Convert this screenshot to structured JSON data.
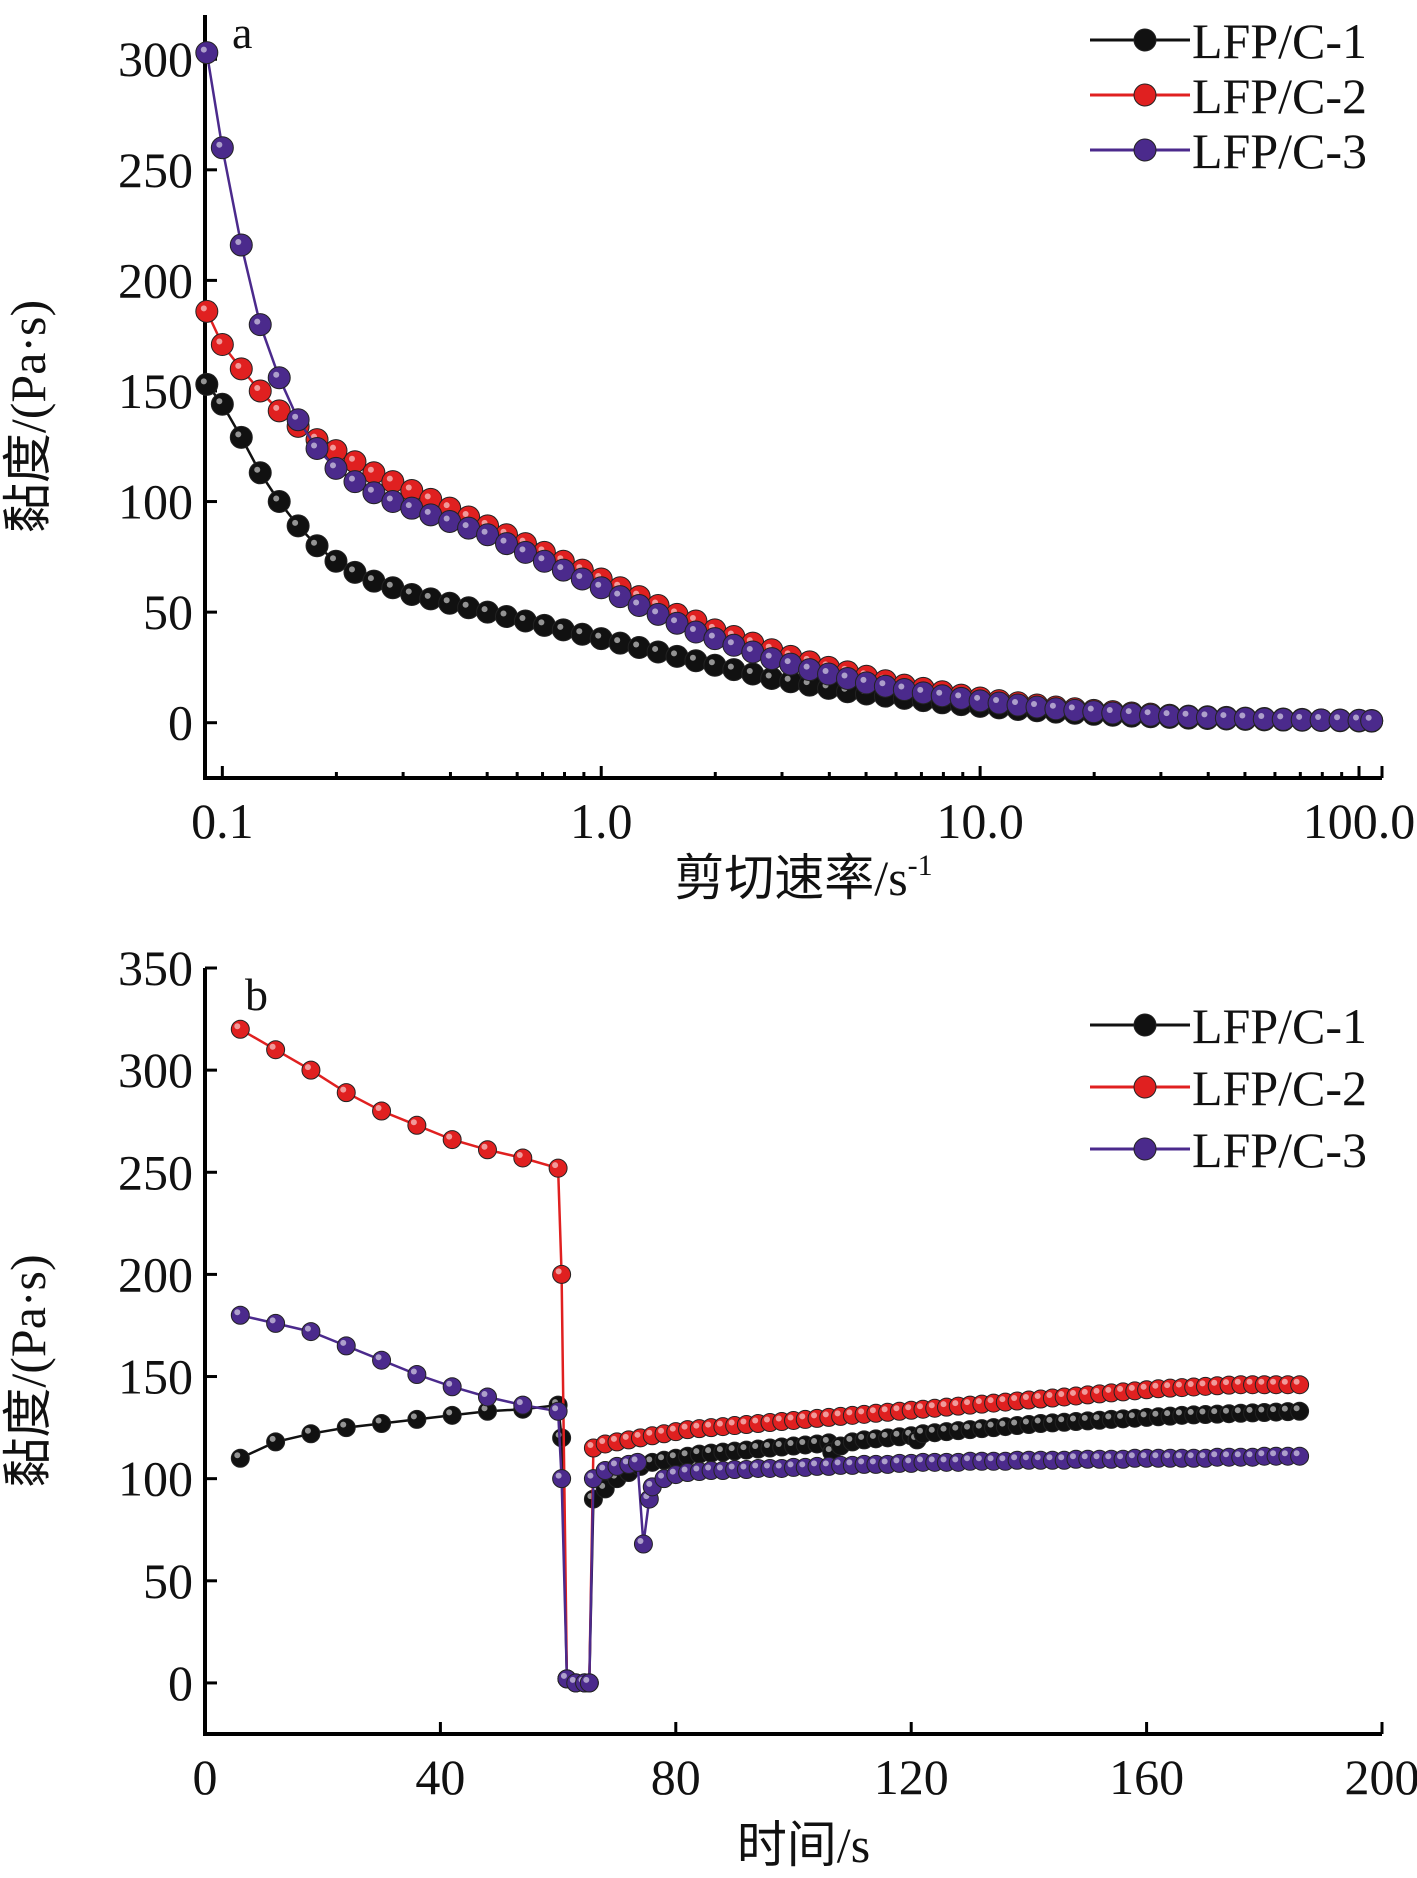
{
  "chart_data": [
    {
      "type": "line",
      "panel_label": "a",
      "xlabel": "剪切速率/s",
      "xlabel_superscript": "-1",
      "ylabel": "黏度/(Pa·s)",
      "xscale": "log",
      "xlim": [
        0.09,
        115
      ],
      "ylim": [
        -25,
        320
      ],
      "xticks": [
        0.1,
        1.0,
        10.0,
        100.0
      ],
      "xtick_labels": [
        "0.1",
        "1.0",
        "10.0",
        "100.0"
      ],
      "yticks": [
        0,
        50,
        100,
        150,
        200,
        250,
        300
      ],
      "ytick_labels": [
        "0",
        "50",
        "100",
        "150",
        "200",
        "250",
        "300"
      ],
      "legend_position": "top-right",
      "grid": false,
      "x": [
        0.091,
        0.1,
        0.1122,
        0.1259,
        0.1413,
        0.1585,
        0.1778,
        0.1995,
        0.2239,
        0.2512,
        0.2818,
        0.3162,
        0.3548,
        0.3981,
        0.4467,
        0.5012,
        0.5623,
        0.631,
        0.7079,
        0.7943,
        0.8913,
        1.0,
        1.122,
        1.259,
        1.413,
        1.585,
        1.778,
        1.995,
        2.239,
        2.512,
        2.818,
        3.162,
        3.548,
        3.981,
        4.467,
        5.012,
        5.623,
        6.31,
        7.079,
        7.943,
        8.913,
        10.0,
        11.22,
        12.59,
        14.13,
        15.85,
        17.78,
        19.95,
        22.39,
        25.12,
        28.18,
        31.62,
        35.48,
        39.81,
        44.67,
        50.12,
        56.23,
        63.1,
        70.79,
        79.43,
        89.13,
        100.0,
        108.0
      ],
      "series": [
        {
          "name": "LFP/C-1",
          "color": "#111111",
          "values": [
            153,
            144,
            129,
            113,
            100,
            89,
            80,
            73,
            68,
            64,
            61,
            58,
            56,
            54,
            52,
            50,
            48,
            46,
            44,
            42,
            40,
            38,
            36,
            34,
            32,
            30,
            28,
            26,
            24,
            22,
            20,
            18.5,
            17,
            15.5,
            14,
            13,
            12,
            11,
            10,
            9,
            8.2,
            7.4,
            6.7,
            6,
            5.4,
            4.8,
            4.3,
            3.8,
            3.4,
            3,
            2.7,
            2.4,
            2.1,
            1.9,
            1.7,
            1.5,
            1.3,
            1.2,
            1.1,
            1,
            0.9,
            0.8,
            0.7
          ]
        },
        {
          "name": "LFP/C-2",
          "color": "#e02020",
          "values": [
            186,
            171,
            160,
            150,
            141,
            134,
            128,
            123,
            118,
            113,
            109,
            105,
            101,
            97,
            93,
            89,
            85,
            81,
            77,
            73,
            69,
            65,
            61,
            57,
            53,
            49,
            46,
            42,
            39,
            36,
            33,
            30,
            27.5,
            25,
            23,
            21,
            19,
            17,
            15.5,
            14,
            12.5,
            11.2,
            10,
            9,
            8,
            7.1,
            6.3,
            5.6,
            5,
            4.4,
            3.9,
            3.4,
            3,
            2.7,
            2.4,
            2.1,
            1.9,
            1.7,
            1.5,
            1.3,
            1.2,
            1.1,
            1
          ]
        },
        {
          "name": "LFP/C-3",
          "color": "#4b2a8c",
          "values": [
            303,
            260,
            216,
            180,
            156,
            137,
            124,
            115,
            109,
            104,
            100,
            97,
            94,
            91,
            88,
            85,
            81,
            77,
            73,
            69,
            65,
            61,
            57,
            53,
            49,
            45,
            41,
            38,
            35,
            32,
            29,
            26.5,
            24,
            22,
            20,
            18,
            16.5,
            15,
            13.5,
            12.2,
            11,
            9.9,
            8.9,
            8,
            7.1,
            6.3,
            5.6,
            5,
            4.4,
            3.9,
            3.4,
            3,
            2.7,
            2.4,
            2.1,
            1.9,
            1.7,
            1.5,
            1.3,
            1.2,
            1.1,
            1,
            0.9
          ]
        }
      ]
    },
    {
      "type": "line",
      "panel_label": "b",
      "xlabel": "时间/s",
      "ylabel": "黏度/(Pa·s)",
      "xlim": [
        0,
        200
      ],
      "ylim": [
        -25,
        350
      ],
      "xticks": [
        0,
        40,
        80,
        120,
        160,
        200
      ],
      "xtick_labels": [
        "0",
        "40",
        "80",
        "120",
        "160",
        "200"
      ],
      "yticks": [
        0,
        50,
        100,
        150,
        200,
        250,
        300,
        350
      ],
      "ytick_labels": [
        "0",
        "50",
        "100",
        "150",
        "200",
        "250",
        "300",
        "350"
      ],
      "legend_position": "top-right",
      "grid": false,
      "series": [
        {
          "name": "LFP/C-1",
          "color": "#111111",
          "x": [
            6,
            12,
            18,
            24,
            30,
            36,
            42,
            48,
            54,
            60,
            60.6,
            61.5,
            63,
            64.5,
            65.3,
            66,
            68,
            70,
            72,
            74,
            76,
            78,
            80,
            82,
            84,
            86,
            88,
            90,
            92,
            94,
            96,
            98,
            100,
            102,
            104,
            106,
            106.5,
            108,
            110,
            112,
            114,
            116,
            118,
            120,
            121,
            122,
            124,
            126,
            128,
            130,
            132,
            134,
            136,
            138,
            140,
            142,
            144,
            146,
            148,
            150,
            152,
            154,
            156,
            158,
            160,
            162,
            164,
            166,
            168,
            170,
            172,
            174,
            176,
            178,
            180,
            182,
            184,
            186
          ],
          "values": [
            110,
            118,
            122,
            125,
            127,
            129,
            131,
            133,
            134,
            136,
            120,
            2,
            0,
            0,
            0,
            90,
            95,
            100,
            103,
            106,
            108,
            109,
            110,
            111,
            112,
            112.5,
            113,
            113.5,
            114,
            114.5,
            115,
            115.5,
            116,
            116.5,
            117,
            117.5,
            113,
            116,
            118,
            119,
            119.5,
            120,
            120.5,
            121,
            119,
            122,
            122.5,
            123,
            123.5,
            124,
            124.5,
            125,
            125.5,
            126,
            126.5,
            127,
            127.3,
            127.6,
            128,
            128.3,
            128.6,
            129,
            129.3,
            129.6,
            130,
            130.3,
            130.6,
            131,
            131.2,
            131.4,
            131.6,
            131.8,
            132,
            132.2,
            132.4,
            132.6,
            132.8,
            133
          ]
        },
        {
          "name": "LFP/C-2",
          "color": "#e02020",
          "x": [
            6,
            12,
            18,
            24,
            30,
            36,
            42,
            48,
            54,
            60,
            60.6,
            61.5,
            63,
            64.5,
            65.3,
            66,
            68,
            70,
            72,
            74,
            76,
            78,
            80,
            82,
            84,
            86,
            88,
            90,
            92,
            94,
            96,
            98,
            100,
            102,
            104,
            106,
            108,
            110,
            112,
            114,
            116,
            118,
            120,
            122,
            124,
            126,
            128,
            130,
            132,
            134,
            136,
            138,
            140,
            142,
            144,
            146,
            148,
            150,
            152,
            154,
            156,
            158,
            160,
            162,
            164,
            166,
            168,
            170,
            172,
            174,
            176,
            178,
            180,
            182,
            184,
            186
          ],
          "values": [
            320,
            310,
            300,
            289,
            280,
            273,
            266,
            261,
            257,
            252,
            200,
            2,
            0,
            0,
            0,
            115,
            117,
            118,
            119,
            120,
            121,
            122,
            123,
            124,
            124.5,
            125,
            125.5,
            126,
            126.5,
            127,
            127.5,
            128,
            128.5,
            129,
            129.5,
            130,
            130.5,
            131,
            131.5,
            132,
            132.5,
            133,
            133.5,
            134,
            134.5,
            135,
            135.5,
            136,
            136.5,
            137,
            137.5,
            138,
            138.5,
            139,
            139.5,
            140,
            140.5,
            141,
            141.5,
            142,
            142.5,
            143,
            143.5,
            144,
            144.3,
            144.6,
            144.9,
            145.2,
            145.5,
            145.8,
            146,
            146,
            146,
            146,
            146,
            146
          ]
        },
        {
          "name": "LFP/C-3",
          "color": "#4b2a8c",
          "x": [
            6,
            12,
            18,
            24,
            30,
            36,
            42,
            48,
            54,
            60,
            60.6,
            61.5,
            63,
            64.5,
            65.3,
            66,
            68,
            70,
            72,
            73.5,
            74.5,
            75.5,
            76,
            78,
            80,
            82,
            84,
            86,
            88,
            90,
            92,
            94,
            96,
            98,
            100,
            102,
            104,
            106,
            108,
            110,
            112,
            114,
            116,
            118,
            120,
            122,
            124,
            126,
            128,
            130,
            132,
            134,
            136,
            138,
            140,
            142,
            144,
            146,
            148,
            150,
            152,
            154,
            156,
            158,
            160,
            162,
            164,
            166,
            168,
            170,
            172,
            174,
            176,
            178,
            180,
            182,
            184,
            186
          ],
          "values": [
            180,
            176,
            172,
            165,
            158,
            151,
            145,
            140,
            136,
            133,
            100,
            2,
            0,
            0,
            0,
            100,
            104,
            106,
            107,
            108,
            68,
            90,
            96,
            100,
            102,
            103,
            103.5,
            104,
            104,
            104.5,
            104.5,
            105,
            105,
            105,
            105.5,
            105.5,
            106,
            106,
            106.5,
            106.5,
            107,
            107,
            107,
            107.5,
            107.5,
            108,
            108,
            108,
            108,
            108.5,
            108.5,
            108.5,
            108.5,
            109,
            109,
            109,
            109,
            109,
            109.5,
            109.5,
            109.5,
            109.5,
            109.5,
            110,
            110,
            110,
            110,
            110,
            110,
            110,
            110.5,
            110.5,
            110.5,
            110.5,
            111,
            111,
            111,
            111
          ]
        }
      ]
    }
  ]
}
